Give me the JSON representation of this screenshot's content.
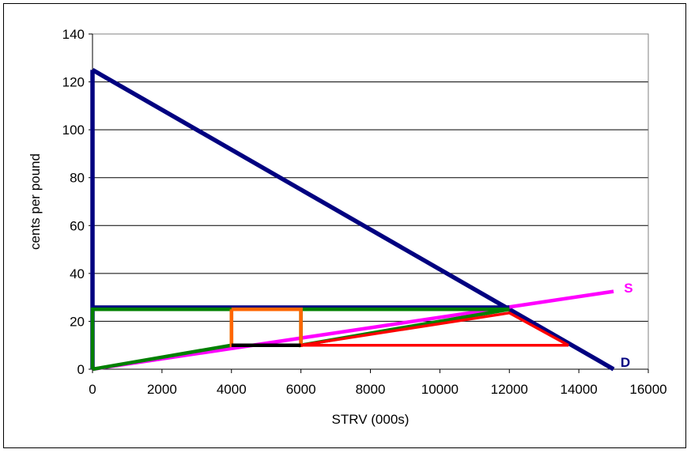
{
  "chart_data": {
    "type": "line",
    "title": "",
    "xlabel": "STRV (000s)",
    "ylabel": "cents per pound",
    "xlim": [
      0,
      16000
    ],
    "ylim": [
      0,
      140
    ],
    "xticks": [
      0,
      2000,
      4000,
      6000,
      8000,
      10000,
      12000,
      14000,
      16000
    ],
    "yticks": [
      0,
      20,
      40,
      60,
      80,
      100,
      120,
      140
    ],
    "grid": "horizontal",
    "series": [
      {
        "name": "D",
        "color": "#000080",
        "points": [
          [
            0,
            125
          ],
          [
            15000,
            0
          ]
        ]
      },
      {
        "name": "S",
        "color": "#ff00ff",
        "points": [
          [
            0,
            0
          ],
          [
            15000,
            32.5
          ]
        ]
      },
      {
        "color": "#000080",
        "points": [
          [
            0,
            0
          ],
          [
            0,
            125
          ]
        ]
      },
      {
        "color": "#000080",
        "points": [
          [
            0,
            26
          ],
          [
            12000,
            26
          ]
        ]
      },
      {
        "color": "#008000",
        "points": [
          [
            0,
            0
          ],
          [
            0,
            25
          ],
          [
            12000,
            25
          ]
        ]
      },
      {
        "color": "#008000",
        "points": [
          [
            0,
            0
          ],
          [
            4000,
            10
          ],
          [
            4000,
            25
          ]
        ]
      },
      {
        "color": "#008000",
        "points": [
          [
            6000,
            25
          ],
          [
            6000,
            10
          ],
          [
            12000,
            25
          ]
        ]
      },
      {
        "color": "#ff6600",
        "points": [
          [
            4000,
            25
          ],
          [
            6000,
            25
          ],
          [
            6000,
            10
          ],
          [
            4000,
            10
          ],
          [
            4000,
            25
          ]
        ]
      },
      {
        "color": "#000000",
        "points": [
          [
            4000,
            10
          ],
          [
            6000,
            10
          ]
        ]
      },
      {
        "color": "#ff0000",
        "points": [
          [
            6000,
            10
          ],
          [
            12000,
            23.5
          ],
          [
            13700,
            10
          ],
          [
            6000,
            10
          ]
        ]
      }
    ],
    "labels": [
      {
        "text": "S",
        "x": 15300,
        "y": 34,
        "color": "#ff00ff"
      },
      {
        "text": "D",
        "x": 15200,
        "y": 3,
        "color": "#000080"
      }
    ]
  }
}
